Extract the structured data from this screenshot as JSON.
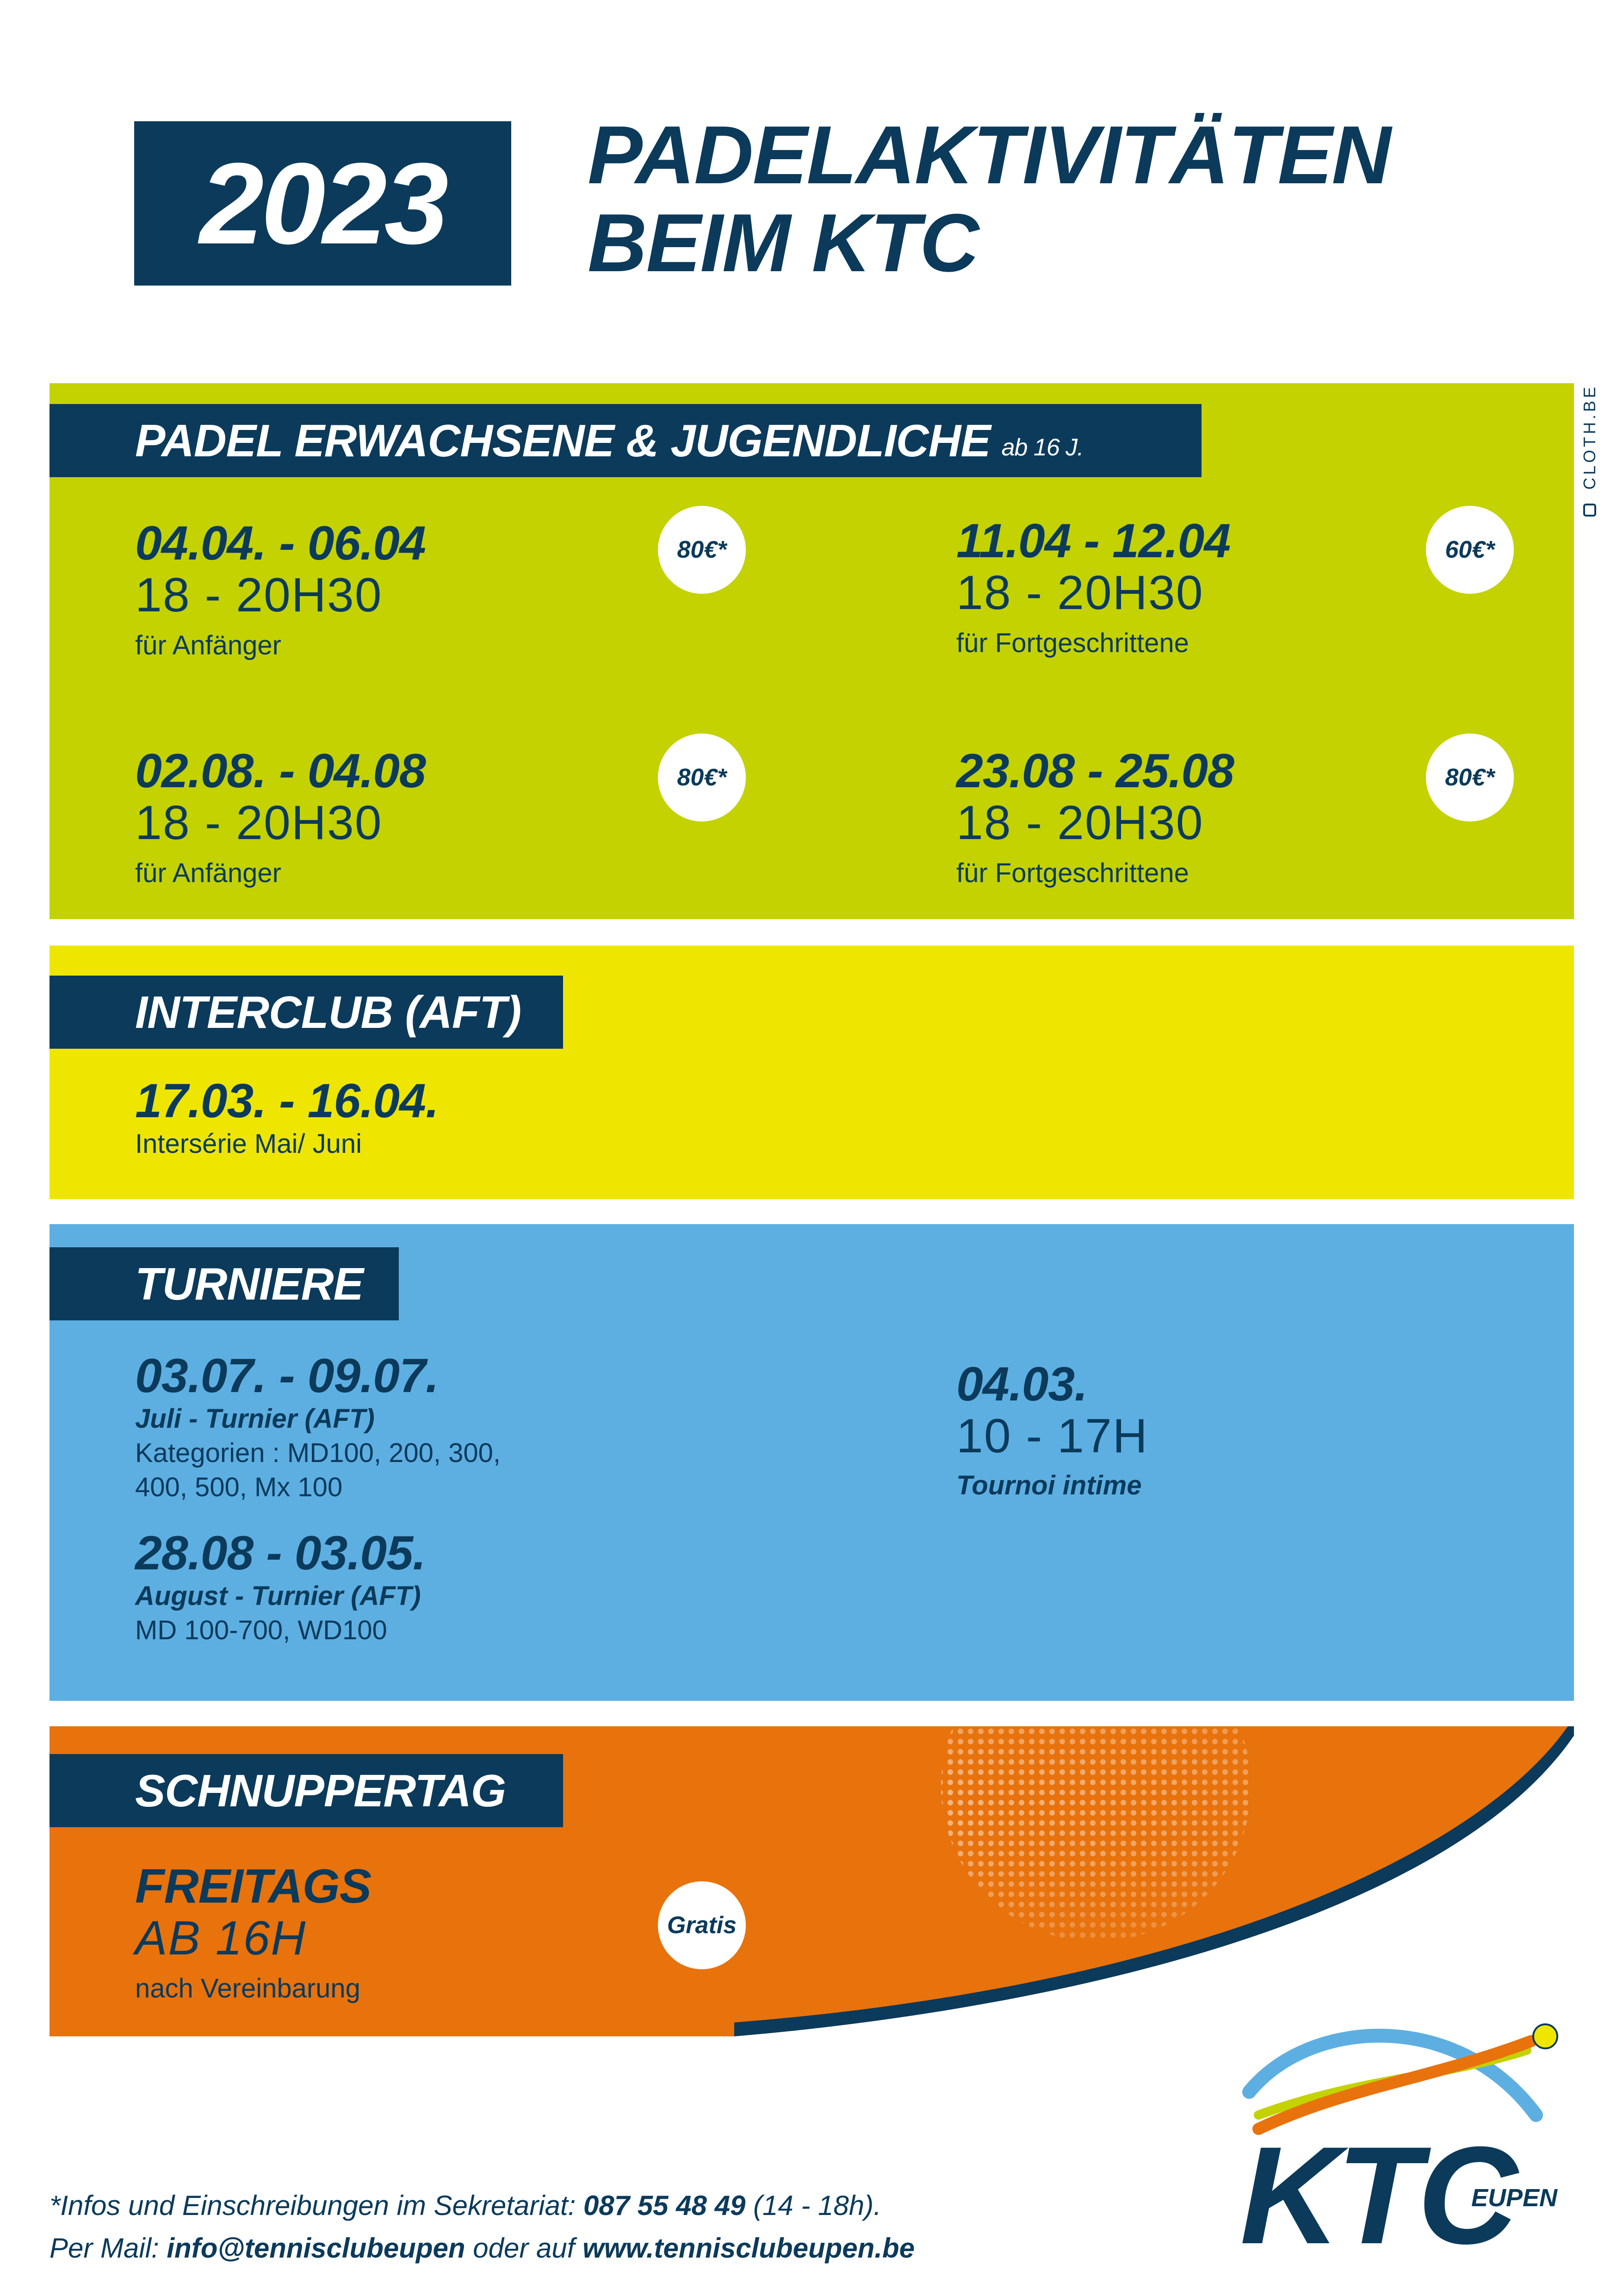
{
  "header": {
    "year": "2023",
    "title_line1": "PADELAKTIVITÄTEN",
    "title_line2": "BEIM KTC",
    "credit": "CLOTH.BE"
  },
  "colors": {
    "navy": "#0b3a5b",
    "green": "#c3d200",
    "yellow": "#eee600",
    "blue": "#5dafe2",
    "orange": "#e8720c"
  },
  "padel": {
    "title": "PADEL ERWACHSENE & JUGENDLICHE",
    "subtitle": "ab 16 J.",
    "events": [
      {
        "date": "04.04. - 06.04",
        "time": "18 - 20H30",
        "note": "für Anfänger",
        "price": "80€*"
      },
      {
        "date": "11.04 - 12.04",
        "time": "18 - 20H30",
        "note": "für Fortgeschrittene",
        "price": "60€*"
      },
      {
        "date": "02.08. - 04.08",
        "time": "18 - 20H30",
        "note": "für Anfänger",
        "price": "80€*"
      },
      {
        "date": "23.08 - 25.08",
        "time": "18 - 20H30",
        "note": "für Fortgeschrittene",
        "price": "80€*"
      }
    ]
  },
  "interclub": {
    "title": "INTERCLUB (AFT)",
    "date": "17.03. - 16.04.",
    "note": "Intersérie Mai/ Juni"
  },
  "turniere": {
    "title": "TURNIERE",
    "events": [
      {
        "date": "03.07. - 09.07.",
        "name": "Juli - Turnier (AFT)",
        "line1": "Kategorien : MD100, 200, 300,",
        "line2": "400, 500, Mx 100"
      },
      {
        "date": "28.08 - 03.05.",
        "name": "August - Turnier (AFT)",
        "line1": "MD 100-700, WD100"
      },
      {
        "date": "04.03.",
        "time": "10 - 17H",
        "name": "Tournoi intime"
      }
    ]
  },
  "schnuppertag": {
    "title": "SCHNUPPERTAG",
    "day": "FREITAGS",
    "time": "AB 16H",
    "note": "nach Vereinbarung",
    "price": "Gratis"
  },
  "footer": {
    "line1_pre": "*Infos und Einschreibungen im Sekretariat: ",
    "phone": "087 55 48 49",
    "line1_post": " (14 - 18h).",
    "line2_pre": "Per Mail: ",
    "email": "info@tennisclubeupen",
    "line2_mid": " oder auf ",
    "website": "www.tennisclubeupen.be"
  },
  "logo": {
    "text": "KTC",
    "city": "EUPEN"
  }
}
